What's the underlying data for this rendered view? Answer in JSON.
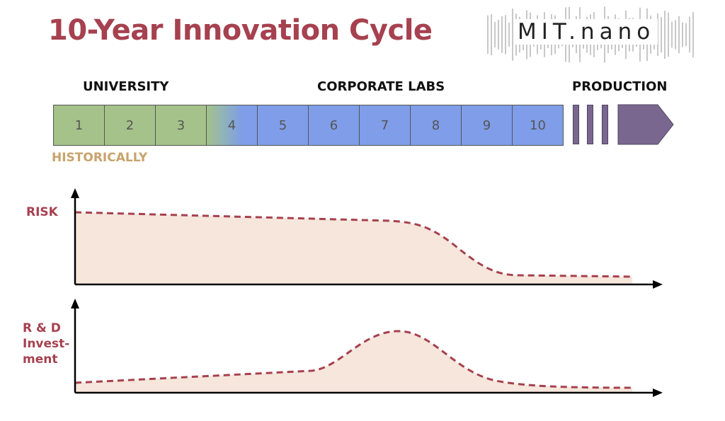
{
  "title": "10-Year Innovation Cycle",
  "logo": {
    "text": "MIT.nano",
    "icon": "sound-wave-bars"
  },
  "phases": [
    "UNIVERSITY",
    "CORPORATE LABS",
    "PRODUCTION"
  ],
  "timeline": {
    "cells": [
      "1",
      "2",
      "3",
      "4",
      "5",
      "6",
      "7",
      "8",
      "9",
      "10"
    ]
  },
  "note": "HISTORICALLY",
  "charts": {
    "risk_label": "RISK",
    "rd_label_line1": "R & D",
    "rd_label_line2": "Invest-",
    "rd_label_line3": "ment"
  },
  "colors": {
    "title": "#a6414f",
    "university": "#a4c28a",
    "corporate": "#7f9de8",
    "production": "#7a6790",
    "historically": "#c8a36c",
    "curve": "#a6414f",
    "fill": "#f6e6dc"
  }
}
